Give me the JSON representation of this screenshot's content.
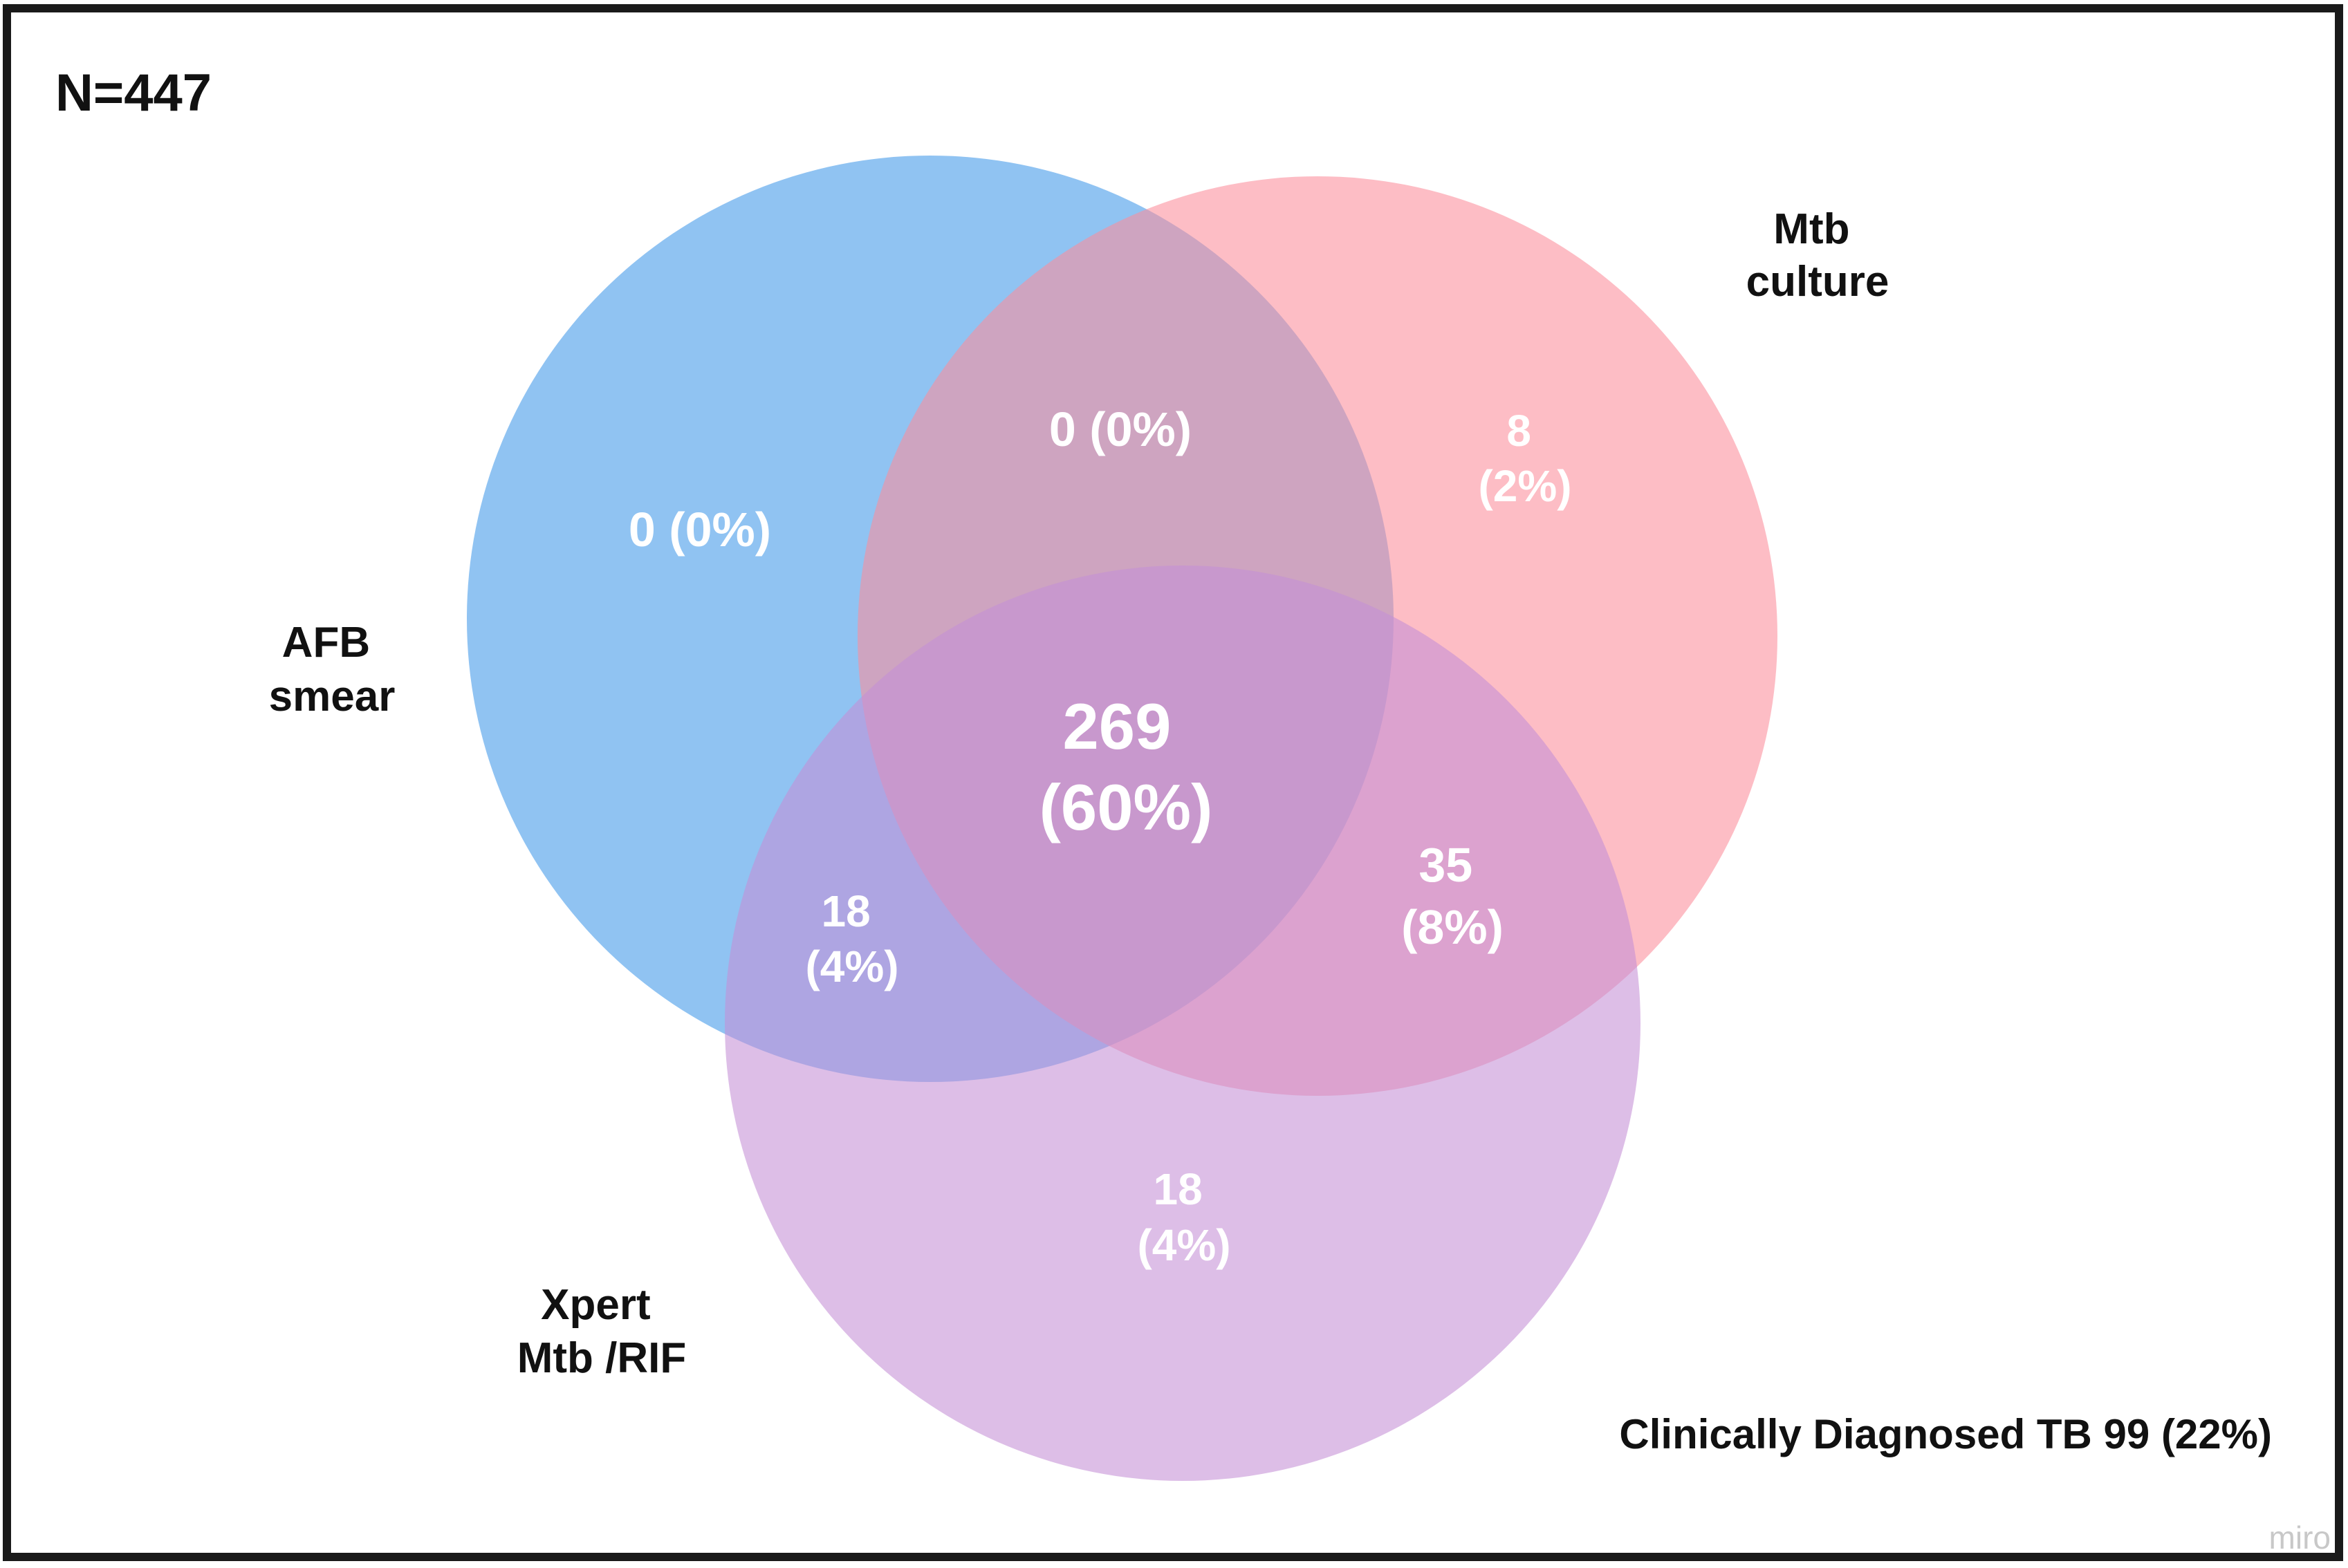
{
  "population_label": "N=447",
  "sets": [
    {
      "id": "afb",
      "lines": [
        "AFB",
        "smear"
      ],
      "color": "#3f97e8"
    },
    {
      "id": "culture",
      "lines": [
        "Mtb",
        "culture"
      ],
      "color": "#fc8d9b"
    },
    {
      "id": "xpert",
      "lines": [
        "Xpert",
        "Mtb /RIF"
      ],
      "color": "#c48fd6"
    }
  ],
  "regions": {
    "afb_only": {
      "sets": [
        "afb"
      ],
      "count": "0",
      "percent": "(0%)"
    },
    "culture_only": {
      "sets": [
        "culture"
      ],
      "count": "8",
      "percent": "(2%)"
    },
    "xpert_only": {
      "sets": [
        "xpert"
      ],
      "count": "18",
      "percent": "(4%)"
    },
    "afb_culture": {
      "sets": [
        "afb",
        "culture"
      ],
      "count": "0",
      "percent": "(0%)"
    },
    "afb_xpert": {
      "sets": [
        "afb",
        "xpert"
      ],
      "count": "18",
      "percent": "(4%)"
    },
    "culture_xpert": {
      "sets": [
        "culture",
        "xpert"
      ],
      "count": "35",
      "percent": "(8%)"
    },
    "all_three": {
      "sets": [
        "afb",
        "culture",
        "xpert"
      ],
      "count": "269",
      "percent": "(60%)"
    }
  },
  "clinical_note": "Clinically Diagnosed TB 99 (22%)",
  "watermark": "miro",
  "colors": {
    "frame": "#1a1a1a",
    "region_text": "#ffffff",
    "label_text": "#111111",
    "watermark": "#c8c8c8"
  }
}
